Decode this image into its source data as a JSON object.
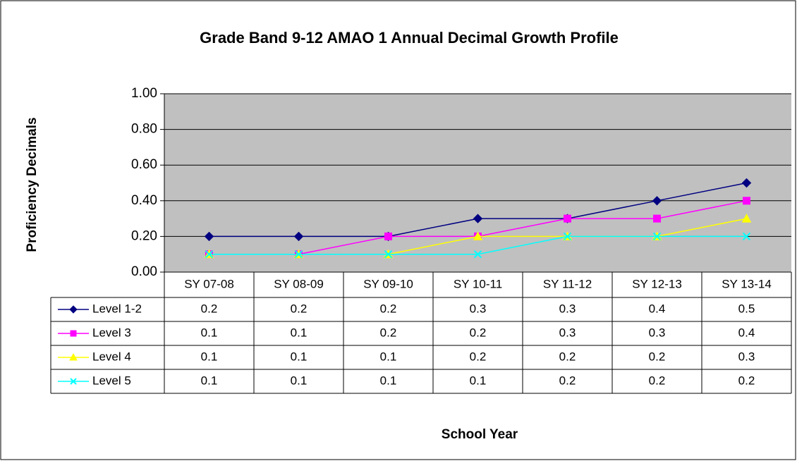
{
  "chart_data": {
    "type": "line",
    "title": "Grade Band 9-12 AMAO 1 Annual Decimal Growth Profile",
    "y_label": "Proficiency Decimals",
    "x_label": "School Year",
    "categories": [
      "SY 07-08",
      "SY 08-09",
      "SY 09-10",
      "SY 10-11",
      "SY 11-12",
      "SY 12-13",
      "SY 13-14"
    ],
    "series": [
      {
        "name": "Level 1-2",
        "color": "#000080",
        "marker": "diamond",
        "values": [
          0.2,
          0.2,
          0.2,
          0.3,
          0.3,
          0.4,
          0.5
        ]
      },
      {
        "name": "Level 3",
        "color": "#ff00ff",
        "marker": "square",
        "values": [
          0.1,
          0.1,
          0.2,
          0.2,
          0.3,
          0.3,
          0.4
        ]
      },
      {
        "name": "Level 4",
        "color": "#ffff00",
        "marker": "triangle",
        "values": [
          0.1,
          0.1,
          0.1,
          0.2,
          0.2,
          0.2,
          0.3
        ]
      },
      {
        "name": "Level 5",
        "color": "#00ffff",
        "marker": "x",
        "values": [
          0.1,
          0.1,
          0.1,
          0.1,
          0.2,
          0.2,
          0.2
        ]
      }
    ],
    "ylim": [
      0,
      1
    ],
    "yticks": [
      {
        "value": 0,
        "label": "0.00"
      },
      {
        "value": 0.2,
        "label": "0.20"
      },
      {
        "value": 0.4,
        "label": "0.40"
      },
      {
        "value": 0.6,
        "label": "0.60"
      },
      {
        "value": 0.8,
        "label": "0.80"
      },
      {
        "value": 1,
        "label": "1.00"
      }
    ],
    "grid": true,
    "plot_background": "#c0c0c0",
    "data_table": true
  }
}
